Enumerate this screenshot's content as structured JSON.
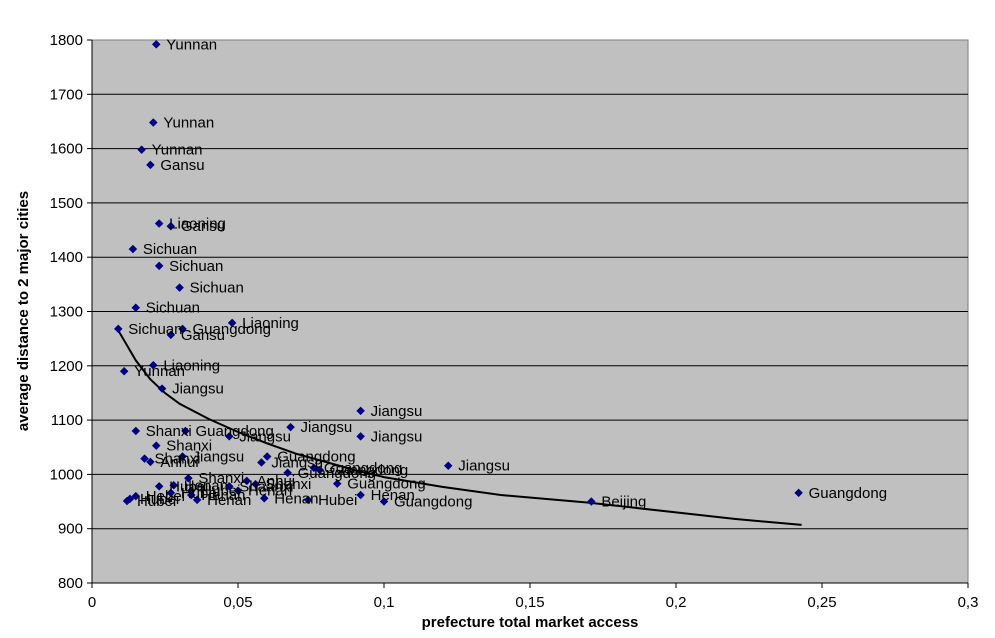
{
  "chart_data": {
    "type": "scatter",
    "xlabel": "prefecture total market access",
    "ylabel": "average distance to 2 major cities",
    "xlim": [
      0,
      0.3
    ],
    "ylim": [
      800,
      1800
    ],
    "x_ticks": [
      0,
      0.05,
      0.1,
      0.15,
      0.2,
      0.25,
      0.3
    ],
    "x_tick_labels": [
      "0",
      "0,05",
      "0,1",
      "0,15",
      "0,2",
      "0,25",
      "0,3"
    ],
    "y_ticks": [
      800,
      900,
      1000,
      1100,
      1200,
      1300,
      1400,
      1500,
      1600,
      1700,
      1800
    ],
    "y_tick_labels": [
      "800",
      "900",
      "1000",
      "1100",
      "1200",
      "1300",
      "1400",
      "1500",
      "1600",
      "1700",
      "1800"
    ],
    "grid": "horizontal",
    "plot_background": "#c0c0c0",
    "marker_color": "#000080",
    "trend_color": "#000000",
    "points": [
      {
        "x": 0.022,
        "y": 1792,
        "label": "Yunnan"
      },
      {
        "x": 0.021,
        "y": 1648,
        "label": "Yunnan"
      },
      {
        "x": 0.017,
        "y": 1598,
        "label": "Yunnan"
      },
      {
        "x": 0.02,
        "y": 1570,
        "label": "Gansu"
      },
      {
        "x": 0.023,
        "y": 1462,
        "label": "Liaoning"
      },
      {
        "x": 0.027,
        "y": 1457,
        "label": "Gansu"
      },
      {
        "x": 0.014,
        "y": 1415,
        "label": "Sichuan"
      },
      {
        "x": 0.023,
        "y": 1384,
        "label": "Sichuan"
      },
      {
        "x": 0.03,
        "y": 1344,
        "label": "Sichuan"
      },
      {
        "x": 0.015,
        "y": 1307,
        "label": "Sichuan"
      },
      {
        "x": 0.048,
        "y": 1279,
        "label": "Liaoning"
      },
      {
        "x": 0.009,
        "y": 1268,
        "label": "Sichuan"
      },
      {
        "x": 0.031,
        "y": 1268,
        "label": "Guangdong"
      },
      {
        "x": 0.027,
        "y": 1257,
        "label": "Gansu"
      },
      {
        "x": 0.021,
        "y": 1201,
        "label": "Liaoning"
      },
      {
        "x": 0.011,
        "y": 1190,
        "label": "Yunnan"
      },
      {
        "x": 0.024,
        "y": 1158,
        "label": "Jiangsu"
      },
      {
        "x": 0.092,
        "y": 1117,
        "label": "Jiangsu"
      },
      {
        "x": 0.068,
        "y": 1087,
        "label": "Jiangsu"
      },
      {
        "x": 0.015,
        "y": 1080,
        "label": "Shanxi"
      },
      {
        "x": 0.032,
        "y": 1080,
        "label": "Guangdong"
      },
      {
        "x": 0.047,
        "y": 1070,
        "label": "Jiangsu"
      },
      {
        "x": 0.092,
        "y": 1070,
        "label": "Jiangsu"
      },
      {
        "x": 0.022,
        "y": 1053,
        "label": "Shanxi"
      },
      {
        "x": 0.06,
        "y": 1033,
        "label": "Guangdong"
      },
      {
        "x": 0.018,
        "y": 1029,
        "label": "Shanxi"
      },
      {
        "x": 0.031,
        "y": 1033,
        "label": "Jiangsu"
      },
      {
        "x": 0.02,
        "y": 1023,
        "label": "Anhui"
      },
      {
        "x": 0.058,
        "y": 1022,
        "label": "Jiangsu"
      },
      {
        "x": 0.076,
        "y": 1012,
        "label": "Guangdong"
      },
      {
        "x": 0.122,
        "y": 1016,
        "label": "Jiangsu"
      },
      {
        "x": 0.078,
        "y": 1008,
        "label": "Guangdong"
      },
      {
        "x": 0.067,
        "y": 1003,
        "label": "Guangdong"
      },
      {
        "x": 0.033,
        "y": 993,
        "label": "Shanxi"
      },
      {
        "x": 0.053,
        "y": 988,
        "label": "Anhui"
      },
      {
        "x": 0.084,
        "y": 983,
        "label": "Guangdong"
      },
      {
        "x": 0.028,
        "y": 980,
        "label": "Henan"
      },
      {
        "x": 0.056,
        "y": 982,
        "label": "Shanxi"
      },
      {
        "x": 0.023,
        "y": 978,
        "label": "Hubei"
      },
      {
        "x": 0.047,
        "y": 978,
        "label": "Shaanxi"
      },
      {
        "x": 0.034,
        "y": 970,
        "label": "Hubei"
      },
      {
        "x": 0.05,
        "y": 970,
        "label": "Henan"
      },
      {
        "x": 0.027,
        "y": 966,
        "label": "Hubei"
      },
      {
        "x": 0.092,
        "y": 962,
        "label": "Henan"
      },
      {
        "x": 0.242,
        "y": 966,
        "label": "Guangdong"
      },
      {
        "x": 0.034,
        "y": 962,
        "label": "Henan"
      },
      {
        "x": 0.015,
        "y": 960,
        "label": "Hebei"
      },
      {
        "x": 0.059,
        "y": 956,
        "label": "Henan"
      },
      {
        "x": 0.074,
        "y": 953,
        "label": "Hubei"
      },
      {
        "x": 0.013,
        "y": 955,
        "label": "Hubei"
      },
      {
        "x": 0.012,
        "y": 951,
        "label": "Hubei"
      },
      {
        "x": 0.036,
        "y": 953,
        "label": "Henan"
      },
      {
        "x": 0.1,
        "y": 950,
        "label": "Guangdong"
      },
      {
        "x": 0.171,
        "y": 950,
        "label": "Beijing"
      }
    ],
    "trend_line": [
      {
        "x": 0.009,
        "y": 1265
      },
      {
        "x": 0.015,
        "y": 1210
      },
      {
        "x": 0.02,
        "y": 1175
      },
      {
        "x": 0.025,
        "y": 1150
      },
      {
        "x": 0.03,
        "y": 1130
      },
      {
        "x": 0.04,
        "y": 1102
      },
      {
        "x": 0.05,
        "y": 1078
      },
      {
        "x": 0.06,
        "y": 1057
      },
      {
        "x": 0.07,
        "y": 1038
      },
      {
        "x": 0.08,
        "y": 1023
      },
      {
        "x": 0.09,
        "y": 1008
      },
      {
        "x": 0.1,
        "y": 995
      },
      {
        "x": 0.12,
        "y": 977
      },
      {
        "x": 0.14,
        "y": 962
      },
      {
        "x": 0.17,
        "y": 948
      },
      {
        "x": 0.2,
        "y": 930
      },
      {
        "x": 0.22,
        "y": 918
      },
      {
        "x": 0.243,
        "y": 907
      }
    ]
  }
}
